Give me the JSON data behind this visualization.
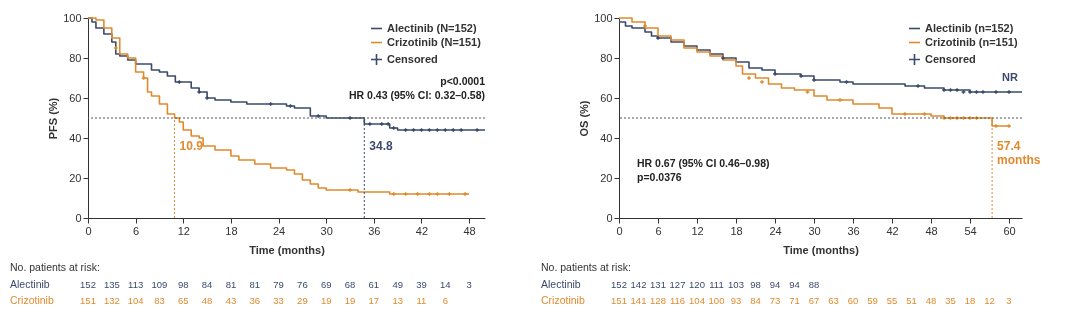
{
  "chart_data": [
    {
      "type": "step",
      "xlabel": "Time (months)",
      "ylabel": "PFS (%)",
      "xlim": [
        0,
        50
      ],
      "xticks": [
        0,
        6,
        12,
        18,
        24,
        30,
        36,
        42,
        48
      ],
      "ylim": [
        0,
        100
      ],
      "yticks": [
        0,
        20,
        40,
        60,
        80,
        100
      ],
      "legend": "top right",
      "series": [
        {
          "name": "Alectinib (N=152)",
          "color": "#3b4a6b",
          "x": [
            0,
            0.5,
            1,
            2,
            3,
            3.5,
            4,
            5,
            6,
            8,
            9,
            10,
            11,
            13,
            14,
            15,
            16,
            18,
            20,
            25,
            26,
            28,
            30,
            34.8,
            38,
            39,
            50
          ],
          "values": [
            100,
            98,
            95,
            92,
            88,
            82,
            81,
            79,
            77,
            74,
            73,
            71,
            68,
            65,
            63,
            60,
            59,
            58,
            57,
            56,
            55,
            51,
            50,
            47,
            45,
            44,
            44
          ]
        },
        {
          "name": "Crizotinib (N=151)",
          "color": "#e08a2e",
          "x": [
            0,
            1,
            2,
            3,
            4,
            5,
            6,
            7,
            7.5,
            8,
            9,
            10,
            10.9,
            11.5,
            12,
            13,
            14,
            14.5,
            16,
            18,
            19,
            21,
            23,
            25,
            26,
            27,
            28,
            29,
            30,
            34,
            38,
            48
          ],
          "values": [
            100,
            99,
            95,
            90,
            82,
            80,
            73,
            70,
            63,
            61,
            57,
            52,
            50,
            48,
            44,
            41,
            40,
            36,
            34,
            31,
            29,
            27,
            25,
            24,
            22,
            19,
            17,
            15,
            14,
            13,
            12,
            12
          ]
        },
        {
          "name": "Censored",
          "type": "scatter",
          "marker": "cross",
          "color": "#3b4a6b",
          "x": [
            11.5,
            14,
            15,
            23,
            25.5,
            29,
            33,
            35.5,
            37,
            37.8,
            38.5,
            40,
            41,
            42,
            43,
            44,
            45,
            46,
            47,
            49,
            3.5,
            7,
            33,
            38.5,
            40,
            41.5,
            43,
            44,
            45.5,
            47.5
          ],
          "values": [
            68,
            63,
            60,
            57,
            56,
            51,
            50,
            47,
            47,
            47,
            45,
            44,
            44,
            44,
            44,
            44,
            44,
            44,
            44,
            44,
            85,
            70,
            14,
            12,
            12,
            12,
            12,
            12,
            12,
            12
          ],
          "colors": [
            "#3b4a6b",
            "#3b4a6b",
            "#3b4a6b",
            "#3b4a6b",
            "#3b4a6b",
            "#3b4a6b",
            "#3b4a6b",
            "#3b4a6b",
            "#3b4a6b",
            "#3b4a6b",
            "#3b4a6b",
            "#3b4a6b",
            "#3b4a6b",
            "#3b4a6b",
            "#3b4a6b",
            "#3b4a6b",
            "#3b4a6b",
            "#3b4a6b",
            "#3b4a6b",
            "#3b4a6b",
            "#e08a2e",
            "#e08a2e",
            "#e08a2e",
            "#e08a2e",
            "#e08a2e",
            "#e08a2e",
            "#e08a2e",
            "#e08a2e",
            "#e08a2e",
            "#e08a2e"
          ]
        }
      ],
      "ref_lines": [
        {
          "axis": "y",
          "value": 50,
          "line_style": "dotted"
        },
        {
          "axis": "x",
          "value": 10.9,
          "label": "10.9",
          "color": "#e08a2e",
          "line_style": "dotted"
        },
        {
          "axis": "x",
          "value": 34.8,
          "label": "34.8",
          "color": "#3b4a6b",
          "line_style": "dotted"
        }
      ],
      "annotations": [
        "No. patients at risk:",
        "Alectinib",
        "152 135 113 109 98 84 81 81 79 76 69 68 61 49 39 14 3",
        "Crizotinib",
        "151 132 104 83 65 48 43 36 33 29 19 19 17 13 11 6",
        "p<0.0001",
        "HR 0.43 (95% CI: 0.32–0.58)"
      ]
    },
    {
      "type": "step",
      "xlabel": "Time (months)",
      "ylabel": "OS (%)",
      "xlim": [
        0,
        62
      ],
      "xticks": [
        0,
        6,
        12,
        18,
        24,
        30,
        36,
        42,
        48,
        54,
        60
      ],
      "ylim": [
        0,
        100
      ],
      "yticks": [
        0,
        20,
        40,
        60,
        80,
        100
      ],
      "legend": "top right",
      "series": [
        {
          "name": "Alectinib (n=152)",
          "color": "#3b4a6b",
          "x": [
            0,
            1,
            2,
            4,
            5,
            6,
            8,
            10,
            12,
            14,
            16,
            18,
            20,
            22,
            24,
            28,
            30,
            34,
            36,
            44,
            47,
            50,
            54,
            62
          ],
          "values": [
            98,
            96,
            95,
            93,
            91,
            90,
            88,
            86,
            84,
            82,
            80,
            78,
            75,
            74,
            72,
            71,
            69,
            68,
            67,
            66,
            65,
            64,
            63,
            63
          ]
        },
        {
          "name": "Crizotinib (n=151)",
          "color": "#e08a2e",
          "x": [
            0,
            2,
            4,
            6,
            8,
            10,
            12,
            14,
            16,
            18,
            19,
            21,
            23,
            25,
            27,
            30,
            32,
            36,
            40,
            42,
            48,
            50,
            57.4,
            60
          ],
          "values": [
            100,
            98,
            95,
            91,
            89,
            85,
            83,
            81,
            79,
            76,
            72,
            70,
            67,
            65,
            64,
            61,
            59,
            57,
            55,
            52,
            51,
            50,
            46,
            46
          ]
        },
        {
          "name": "Censored",
          "type": "scatter",
          "marker": "cross",
          "color": "#3b4a6b",
          "x": [
            6,
            16,
            24,
            28,
            30,
            35,
            46,
            50,
            51,
            52,
            53,
            54,
            55,
            56,
            58,
            60,
            4,
            20,
            22,
            29,
            34,
            44,
            47,
            50,
            51,
            52,
            53,
            54,
            55,
            58,
            60
          ],
          "values": [
            90,
            80,
            72,
            71,
            69,
            68,
            66,
            64,
            64,
            64,
            63,
            63,
            63,
            63,
            63,
            63,
            96,
            70,
            68,
            63,
            59,
            52,
            52,
            50,
            50,
            50,
            50,
            50,
            50,
            46,
            46
          ],
          "colors": [
            "#3b4a6b",
            "#3b4a6b",
            "#3b4a6b",
            "#3b4a6b",
            "#3b4a6b",
            "#3b4a6b",
            "#3b4a6b",
            "#3b4a6b",
            "#3b4a6b",
            "#3b4a6b",
            "#3b4a6b",
            "#3b4a6b",
            "#3b4a6b",
            "#3b4a6b",
            "#3b4a6b",
            "#3b4a6b",
            "#e08a2e",
            "#e08a2e",
            "#e08a2e",
            "#e08a2e",
            "#e08a2e",
            "#e08a2e",
            "#e08a2e",
            "#e08a2e",
            "#e08a2e",
            "#e08a2e",
            "#e08a2e",
            "#e08a2e",
            "#e08a2e",
            "#e08a2e",
            "#e08a2e"
          ]
        }
      ],
      "ref_lines": [
        {
          "axis": "y",
          "value": 50,
          "line_style": "dotted"
        },
        {
          "axis": "x",
          "value": 57.4,
          "label": "57.4 months",
          "color": "#e08a2e",
          "line_style": "dotted"
        }
      ],
      "annotations": [
        "No. patients at risk:",
        "Alectinib",
        "152 142 131 127 120 111 103 98 94 94 88",
        "Crizotinib",
        "151 141 128 116 104 100 93 84 73 71 67 63 60 59 55 51 48 35 18 12 3",
        "HR 0.67 (95% CI 0.46–0.98)",
        "p=0.0376",
        {
          "text": "NR",
          "x": 62,
          "y": 63
        }
      ]
    }
  ]
}
